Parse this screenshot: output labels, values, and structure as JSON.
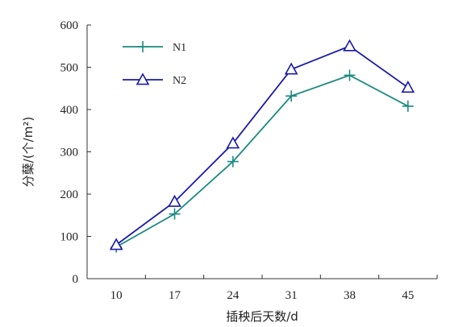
{
  "chart_data": {
    "type": "line",
    "title": "",
    "xlabel": "插秧后天数/d",
    "ylabel": "分蘖/(个/m²)",
    "x": [
      10,
      17,
      24,
      31,
      38,
      45
    ],
    "xtick_labels": [
      "10",
      "17",
      "24",
      "31",
      "38",
      "45"
    ],
    "ylim": [
      0,
      600
    ],
    "yticks": [
      0,
      100,
      200,
      300,
      400,
      500,
      600
    ],
    "ytick_labels": [
      "0",
      "100",
      "200",
      "300",
      "400",
      "500",
      "600"
    ],
    "grid": false,
    "legend_position": "top-left",
    "series": [
      {
        "name": "N1",
        "marker": "plus",
        "color": "#1a8a80",
        "values": [
          75,
          153,
          277,
          432,
          481,
          408
        ]
      },
      {
        "name": "N2",
        "marker": "triangle",
        "color": "#1a1aa6",
        "values": [
          80,
          182,
          320,
          495,
          550,
          452
        ]
      }
    ]
  }
}
